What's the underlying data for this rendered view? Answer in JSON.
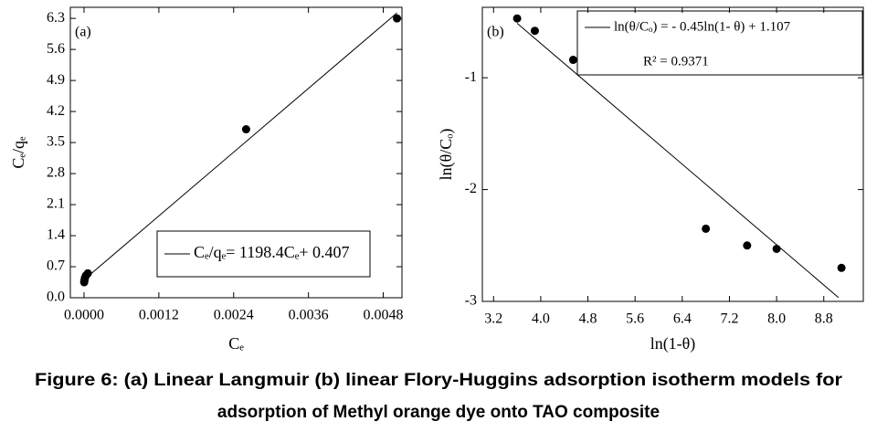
{
  "chart_data": [
    {
      "type": "scatter",
      "annotation": "(a)",
      "x_label": "Cₑ",
      "y_label": "Cₑ/qₑ",
      "xlim": [
        -0.00022,
        0.0051
      ],
      "ylim": [
        0,
        6.55
      ],
      "xticks": [
        {
          "value": 0,
          "label": "0.0000"
        },
        0.0012,
        0.0024,
        0.0036,
        0.0048
      ],
      "yticks": [
        {
          "value": 0,
          "label": "0.0"
        },
        0.7,
        1.4,
        2.1,
        2.8,
        3.5,
        4.2,
        4.9,
        5.6,
        6.3
      ],
      "legend": "lower right",
      "series": [
        {
          "mode": "markers",
          "color": "#000000",
          "x": [
            2e-06,
            8e-06,
            1.5e-05,
            3e-05,
            6e-05,
            0.0026,
            0.00502
          ],
          "values": [
            0.35,
            0.4,
            0.45,
            0.5,
            0.55,
            3.8,
            6.3
          ]
        },
        {
          "mode": "line",
          "name": "Cₑ/qₑ= 1198.4Cₑ+ 0.407",
          "color": "#000000",
          "x": [
            0,
            0.00502
          ],
          "values": [
            0.407,
            6.423
          ]
        }
      ]
    },
    {
      "type": "scatter",
      "annotation": "(b)",
      "x_label": "ln(1-θ)",
      "y_label": "ln(θ/Cₒ)",
      "xlim": [
        3.01,
        9.47
      ],
      "ylim": [
        -3,
        -0.37
      ],
      "xticks": [
        3.2,
        {
          "value": 4,
          "label": "4.0"
        },
        4.8,
        5.6,
        6.4,
        7.2,
        {
          "value": 8,
          "label": "8.0"
        },
        8.8
      ],
      "yticks": [
        -3,
        -2,
        -1
      ],
      "legend": "upper right",
      "legend_note": "R² = 0.9371",
      "series": [
        {
          "mode": "markers",
          "color": "#000000",
          "x": [
            3.6,
            3.9,
            4.55,
            6.8,
            7.5,
            8.0,
            9.1
          ],
          "values": [
            -0.47,
            -0.58,
            -0.84,
            -2.35,
            -2.5,
            -2.53,
            -2.7
          ]
        },
        {
          "mode": "line",
          "name": "ln(θ/Cₒ) = - 0.45ln(1- θ) + 1.107",
          "color": "#000000",
          "x": [
            3.6,
            9.05
          ],
          "values": [
            -0.513,
            -2.966
          ]
        }
      ]
    }
  ],
  "caption": [
    "Figure 6: (a) Linear Langmuir (b) linear Flory-Huggins adsorption isotherm models for",
    "adsorption of Methyl orange dye onto TAO composite"
  ]
}
